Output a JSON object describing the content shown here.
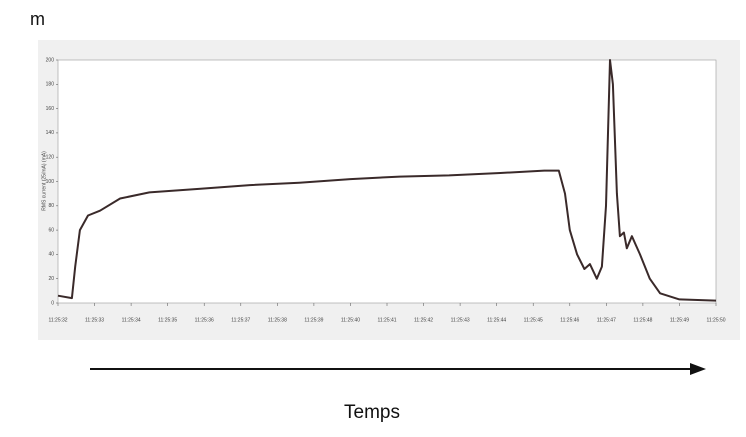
{
  "chart_data": {
    "type": "line",
    "panel_label": "m",
    "y_label": "RMS current (25/mA) (mA)",
    "x_caption": "Temps",
    "color": "#3a2a2a",
    "x": [
      32.0,
      32.38,
      32.47,
      32.6,
      32.82,
      33.15,
      33.7,
      34.5,
      35.9,
      37.25,
      38.6,
      40.0,
      41.35,
      42.7,
      44.1,
      45.3,
      45.7,
      45.87,
      46.0,
      46.2,
      46.4,
      46.55,
      46.74,
      46.88,
      46.99,
      47.1,
      47.18,
      47.29,
      47.37,
      47.48,
      47.56,
      47.7,
      47.92,
      48.19,
      48.47,
      49.0,
      50.0
    ],
    "values": [
      6,
      4,
      30,
      60,
      72,
      76,
      86,
      91,
      94,
      97,
      99,
      102,
      104,
      105,
      107,
      109,
      109,
      90,
      60,
      40,
      28,
      32,
      20,
      30,
      80,
      200,
      180,
      90,
      55,
      58,
      45,
      55,
      40,
      20,
      8,
      3,
      2
    ],
    "xlim": [
      32,
      50
    ],
    "xticks": [
      {
        "value": 32,
        "label": "11:25:32"
      },
      {
        "value": 33,
        "label": "11:25:33"
      },
      {
        "value": 34,
        "label": "11:25:34"
      },
      {
        "value": 35,
        "label": "11:25:35"
      },
      {
        "value": 36,
        "label": "11:25:36"
      },
      {
        "value": 37,
        "label": "11:25:37"
      },
      {
        "value": 38,
        "label": "11:25:38"
      },
      {
        "value": 39,
        "label": "11:25:39"
      },
      {
        "value": 40,
        "label": "11:25:40"
      },
      {
        "value": 41,
        "label": "11:25:41"
      },
      {
        "value": 42,
        "label": "11:25:42"
      },
      {
        "value": 43,
        "label": "11:25:43"
      },
      {
        "value": 44,
        "label": "11:25:44"
      },
      {
        "value": 45,
        "label": "11:25:45"
      },
      {
        "value": 46,
        "label": "11:25:46"
      },
      {
        "value": 47,
        "label": "11:25:47"
      },
      {
        "value": 48,
        "label": "11:25:48"
      },
      {
        "value": 49,
        "label": "11:25:49"
      },
      {
        "value": 50,
        "label": "11:25:50"
      }
    ],
    "ylim": [
      0,
      200
    ],
    "yticks": [
      0,
      20,
      40,
      60,
      80,
      100,
      120,
      140,
      160,
      180,
      200
    ]
  }
}
